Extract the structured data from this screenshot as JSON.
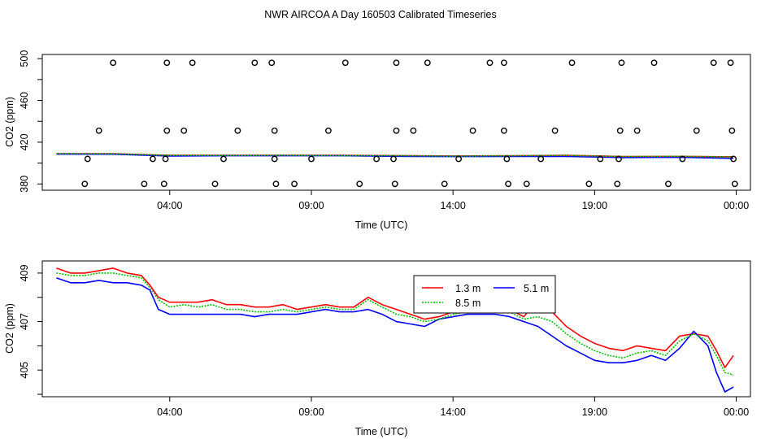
{
  "figure_title": "NWR AIRCOA A  Day 160503  Calibrated Timeseries",
  "chart_data": [
    {
      "type": "line",
      "title": "NWR AIRCOA A  Day 160503  Calibrated Timeseries",
      "xlabel": "Time (UTC)",
      "ylabel": "CO2 (ppm)",
      "xlim": [
        -0.5,
        24.5
      ],
      "ylim": [
        374,
        504
      ],
      "x_ticks": [
        4,
        9,
        14,
        19,
        24
      ],
      "x_tick_labels": [
        "04:00",
        "09:00",
        "14:00",
        "19:00",
        "00:00"
      ],
      "y_ticks": [
        380,
        420,
        460,
        500
      ],
      "y_tick_labels": [
        "380",
        "420",
        "460",
        "500"
      ],
      "series": [
        {
          "name": "1.3 m",
          "color": "#ff0000",
          "x": [
            0,
            2,
            4,
            6,
            8,
            10,
            12,
            14,
            16,
            18,
            20,
            22,
            23.9
          ],
          "values": [
            409,
            409,
            407.5,
            407.5,
            407.5,
            407.4,
            407.2,
            406.8,
            407,
            407.5,
            406.3,
            406.5,
            406
          ]
        },
        {
          "name": "5.1 m",
          "color": "#0000ff",
          "x": [
            0,
            2,
            4,
            6,
            8,
            10,
            12,
            14,
            16,
            18,
            20,
            22,
            23.9
          ],
          "values": [
            408.6,
            408.5,
            406.8,
            407,
            407,
            407,
            406.5,
            406.2,
            406.3,
            406.3,
            405.3,
            405.5,
            404.5
          ]
        },
        {
          "name": "8.5 m",
          "color": "#00c000",
          "x": [
            0,
            2,
            4,
            6,
            8,
            10,
            12,
            14,
            16,
            18,
            20,
            22,
            23.9
          ],
          "values": [
            409,
            408.9,
            407.4,
            407.3,
            407.4,
            407.2,
            407.1,
            406.6,
            407,
            407.3,
            406.2,
            406.5,
            405.8
          ]
        }
      ],
      "cal_points": [
        {
          "x": 1.0,
          "y": 380
        },
        {
          "x": 1.1,
          "y": 404
        },
        {
          "x": 1.5,
          "y": 431
        },
        {
          "x": 2.0,
          "y": 496
        },
        {
          "x": 3.1,
          "y": 380
        },
        {
          "x": 3.4,
          "y": 404
        },
        {
          "x": 3.8,
          "y": 380
        },
        {
          "x": 3.9,
          "y": 431
        },
        {
          "x": 3.85,
          "y": 404
        },
        {
          "x": 3.9,
          "y": 496
        },
        {
          "x": 4.5,
          "y": 431
        },
        {
          "x": 4.8,
          "y": 496
        },
        {
          "x": 5.6,
          "y": 380
        },
        {
          "x": 5.9,
          "y": 404
        },
        {
          "x": 6.4,
          "y": 431
        },
        {
          "x": 7.0,
          "y": 496
        },
        {
          "x": 7.6,
          "y": 496
        },
        {
          "x": 7.7,
          "y": 431
        },
        {
          "x": 7.7,
          "y": 404
        },
        {
          "x": 7.75,
          "y": 380
        },
        {
          "x": 8.4,
          "y": 380
        },
        {
          "x": 9.0,
          "y": 404
        },
        {
          "x": 9.6,
          "y": 431
        },
        {
          "x": 10.2,
          "y": 496
        },
        {
          "x": 10.7,
          "y": 380
        },
        {
          "x": 11.3,
          "y": 404
        },
        {
          "x": 11.9,
          "y": 404
        },
        {
          "x": 11.95,
          "y": 380
        },
        {
          "x": 12.0,
          "y": 496
        },
        {
          "x": 12.0,
          "y": 431
        },
        {
          "x": 12.6,
          "y": 431
        },
        {
          "x": 13.1,
          "y": 496
        },
        {
          "x": 13.7,
          "y": 380
        },
        {
          "x": 14.2,
          "y": 404
        },
        {
          "x": 14.7,
          "y": 431
        },
        {
          "x": 15.3,
          "y": 496
        },
        {
          "x": 15.8,
          "y": 496
        },
        {
          "x": 15.8,
          "y": 431
        },
        {
          "x": 15.9,
          "y": 404
        },
        {
          "x": 15.95,
          "y": 380
        },
        {
          "x": 16.6,
          "y": 380
        },
        {
          "x": 17.1,
          "y": 404
        },
        {
          "x": 17.6,
          "y": 431
        },
        {
          "x": 18.2,
          "y": 496
        },
        {
          "x": 18.8,
          "y": 380
        },
        {
          "x": 19.2,
          "y": 404
        },
        {
          "x": 19.8,
          "y": 380
        },
        {
          "x": 19.85,
          "y": 404
        },
        {
          "x": 19.9,
          "y": 431
        },
        {
          "x": 19.95,
          "y": 496
        },
        {
          "x": 20.5,
          "y": 431
        },
        {
          "x": 21.1,
          "y": 496
        },
        {
          "x": 21.6,
          "y": 380
        },
        {
          "x": 22.1,
          "y": 404
        },
        {
          "x": 22.6,
          "y": 431
        },
        {
          "x": 23.2,
          "y": 496
        },
        {
          "x": 23.8,
          "y": 496
        },
        {
          "x": 23.85,
          "y": 431
        },
        {
          "x": 23.9,
          "y": 404
        },
        {
          "x": 23.95,
          "y": 380
        }
      ]
    },
    {
      "type": "line",
      "title": "",
      "xlabel": "Time (UTC)",
      "ylabel": "CO2 (ppm)",
      "xlim": [
        -0.5,
        24.5
      ],
      "ylim": [
        403.9,
        409.5
      ],
      "x_ticks": [
        4,
        9,
        14,
        19,
        24
      ],
      "x_tick_labels": [
        "04:00",
        "09:00",
        "14:00",
        "19:00",
        "00:00"
      ],
      "y_ticks": [
        405,
        407,
        409
      ],
      "y_tick_labels": [
        "405",
        "407",
        "409"
      ],
      "legend": {
        "location": "top-center",
        "entries": [
          "1.3 m",
          "5.1 m",
          "8.5 m"
        ]
      },
      "series": [
        {
          "name": "1.3 m",
          "color": "#ff0000",
          "x": [
            0,
            0.5,
            1,
            1.5,
            2,
            2.5,
            3,
            3.3,
            3.6,
            4,
            4.5,
            5,
            5.5,
            6,
            6.5,
            7,
            7.5,
            8,
            8.5,
            9,
            9.5,
            10,
            10.5,
            11,
            11.5,
            12,
            12.5,
            13,
            13.5,
            14,
            14.5,
            15,
            15.5,
            16,
            16.5,
            17,
            17.5,
            18,
            18.5,
            19,
            19.5,
            20,
            20.5,
            21,
            21.5,
            22,
            22.5,
            23,
            23.3,
            23.6,
            23.9
          ],
          "values": [
            409.2,
            409.0,
            409.0,
            409.1,
            409.2,
            409.0,
            408.9,
            408.5,
            408.0,
            407.8,
            407.8,
            407.8,
            407.9,
            407.7,
            407.7,
            407.6,
            407.6,
            407.7,
            407.5,
            407.6,
            407.7,
            407.6,
            407.6,
            408.0,
            407.7,
            407.5,
            407.3,
            407.1,
            407.2,
            407.4,
            407.5,
            407.6,
            407.6,
            407.5,
            407.2,
            407.9,
            407.4,
            406.8,
            406.4,
            406.1,
            405.9,
            405.8,
            406.0,
            405.9,
            405.8,
            406.4,
            406.5,
            406.4,
            405.8,
            405.1,
            405.6
          ]
        },
        {
          "name": "5.1 m",
          "color": "#0000ff",
          "x": [
            0,
            0.5,
            1,
            1.5,
            2,
            2.5,
            3,
            3.3,
            3.6,
            4,
            4.5,
            5,
            5.5,
            6,
            6.5,
            7,
            7.5,
            8,
            8.5,
            9,
            9.5,
            10,
            10.5,
            11,
            11.5,
            12,
            12.5,
            13,
            13.5,
            14,
            14.5,
            15,
            15.5,
            16,
            16.5,
            17,
            17.5,
            18,
            18.5,
            19,
            19.5,
            20,
            20.5,
            21,
            21.5,
            22,
            22.5,
            23,
            23.3,
            23.6,
            23.9
          ],
          "values": [
            408.8,
            408.6,
            408.6,
            408.7,
            408.6,
            408.6,
            408.5,
            408.3,
            407.5,
            407.3,
            407.3,
            407.3,
            407.3,
            407.3,
            407.3,
            407.2,
            407.3,
            407.3,
            407.3,
            407.4,
            407.5,
            407.4,
            407.4,
            407.5,
            407.3,
            407.0,
            406.9,
            406.8,
            407.1,
            407.2,
            407.3,
            407.3,
            407.3,
            407.2,
            407.0,
            406.8,
            406.4,
            406.0,
            405.7,
            405.4,
            405.3,
            405.3,
            405.4,
            405.6,
            405.4,
            405.9,
            406.6,
            406.0,
            404.9,
            404.1,
            404.3
          ]
        },
        {
          "name": "8.5 m",
          "color": "#00c000",
          "x": [
            0,
            0.5,
            1,
            1.5,
            2,
            2.5,
            3,
            3.3,
            3.6,
            4,
            4.5,
            5,
            5.5,
            6,
            6.5,
            7,
            7.5,
            8,
            8.5,
            9,
            9.5,
            10,
            10.5,
            11,
            11.5,
            12,
            12.5,
            13,
            13.5,
            14,
            14.5,
            15,
            15.5,
            16,
            16.5,
            17,
            17.5,
            18,
            18.5,
            19,
            19.5,
            20,
            20.5,
            21,
            21.5,
            22,
            22.5,
            23,
            23.3,
            23.6,
            23.9
          ],
          "values": [
            409.0,
            408.9,
            408.9,
            409.0,
            409.0,
            408.9,
            408.8,
            408.4,
            407.9,
            407.6,
            407.7,
            407.6,
            407.7,
            407.5,
            407.5,
            407.4,
            407.4,
            407.5,
            407.4,
            407.5,
            407.6,
            407.5,
            407.5,
            407.9,
            407.6,
            407.3,
            407.2,
            407.0,
            407.1,
            407.3,
            407.4,
            407.5,
            407.5,
            407.4,
            407.1,
            407.2,
            407.0,
            406.5,
            406.1,
            405.8,
            405.6,
            405.5,
            405.7,
            405.8,
            405.6,
            406.2,
            406.5,
            406.2,
            405.6,
            404.9,
            404.8
          ]
        }
      ]
    }
  ]
}
